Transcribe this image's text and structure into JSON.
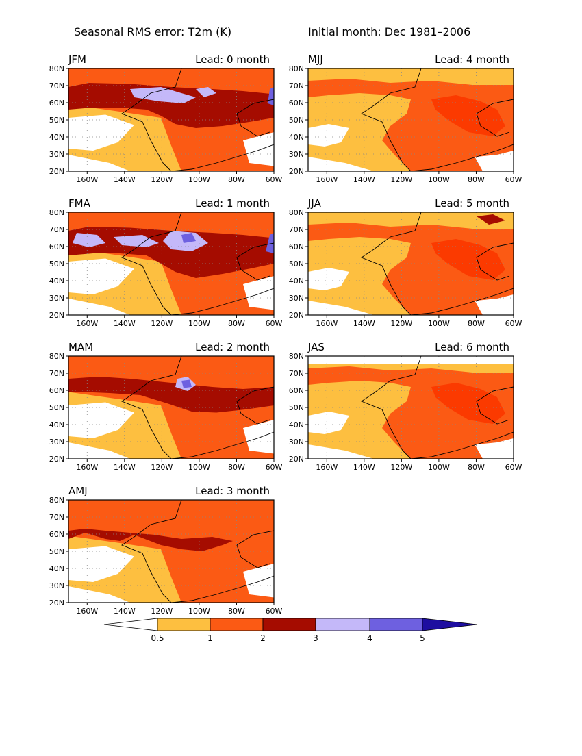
{
  "header": {
    "title": "Seasonal RMS error: T2m (K)",
    "subtitle": "Initial month: Dec 1981–2006"
  },
  "axes": {
    "lon_ticks": [
      "160W",
      "140W",
      "120W",
      "100W",
      "80W",
      "60W"
    ],
    "lat_ticks": [
      "80N",
      "70N",
      "60N",
      "50N",
      "40N",
      "30N",
      "20N"
    ],
    "lon_range": [
      -170,
      -60
    ],
    "lat_range": [
      20,
      80
    ],
    "grid": "dotted"
  },
  "panels": [
    {
      "season": "JFM",
      "lead": "Lead: 0 month",
      "pattern": 0
    },
    {
      "season": "MJJ",
      "lead": "Lead: 4 month",
      "pattern": 4
    },
    {
      "season": "FMA",
      "lead": "Lead: 1 month",
      "pattern": 1
    },
    {
      "season": "JJA",
      "lead": "Lead: 5 month",
      "pattern": 5
    },
    {
      "season": "MAM",
      "lead": "Lead: 2 month",
      "pattern": 2
    },
    {
      "season": "JAS",
      "lead": "Lead: 6 month",
      "pattern": 6
    },
    {
      "season": "AMJ",
      "lead": "Lead: 3 month",
      "pattern": 3
    }
  ],
  "colorbar": {
    "labels": [
      "0.5",
      "1",
      "2",
      "3",
      "4",
      "5"
    ],
    "bins": [
      {
        "color": "#ffffff"
      },
      {
        "color": "#fdbf40"
      },
      {
        "color": "#fb5a14"
      },
      {
        "color": "#fb3a00"
      },
      {
        "color": "#a50c00"
      },
      {
        "color": "#c4b8f9"
      },
      {
        "color": "#6e60e0"
      },
      {
        "color": "#1e0ea0"
      }
    ]
  }
}
